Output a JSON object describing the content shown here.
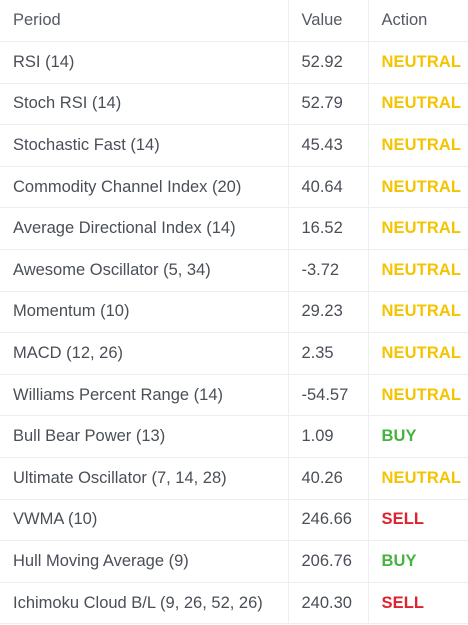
{
  "table": {
    "headers": {
      "period": "Period",
      "value": "Value",
      "action": "Action"
    },
    "rows": [
      {
        "period": "RSI (14)",
        "value": "52.92",
        "action": "NEUTRAL"
      },
      {
        "period": "Stoch RSI (14)",
        "value": "52.79",
        "action": "NEUTRAL"
      },
      {
        "period": "Stochastic Fast (14)",
        "value": "45.43",
        "action": "NEUTRAL"
      },
      {
        "period": "Commodity Channel Index (20)",
        "value": "40.64",
        "action": "NEUTRAL"
      },
      {
        "period": "Average Directional Index (14)",
        "value": "16.52",
        "action": "NEUTRAL"
      },
      {
        "period": "Awesome Oscillator (5, 34)",
        "value": "-3.72",
        "action": "NEUTRAL"
      },
      {
        "period": "Momentum (10)",
        "value": "29.23",
        "action": "NEUTRAL"
      },
      {
        "period": "MACD (12, 26)",
        "value": "2.35",
        "action": "NEUTRAL"
      },
      {
        "period": "Williams Percent Range (14)",
        "value": "-54.57",
        "action": "NEUTRAL"
      },
      {
        "period": "Bull Bear Power (13)",
        "value": "1.09",
        "action": "BUY"
      },
      {
        "period": "Ultimate Oscillator (7, 14, 28)",
        "value": "40.26",
        "action": "NEUTRAL"
      },
      {
        "period": "VWMA (10)",
        "value": "246.66",
        "action": "SELL"
      },
      {
        "period": "Hull Moving Average (9)",
        "value": "206.76",
        "action": "BUY"
      },
      {
        "period": "Ichimoku Cloud B/L (9, 26, 52, 26)",
        "value": "240.30",
        "action": "SELL"
      }
    ]
  },
  "colors": {
    "NEUTRAL": "#f5c400",
    "BUY": "#45b43e",
    "SELL": "#e0222e"
  }
}
